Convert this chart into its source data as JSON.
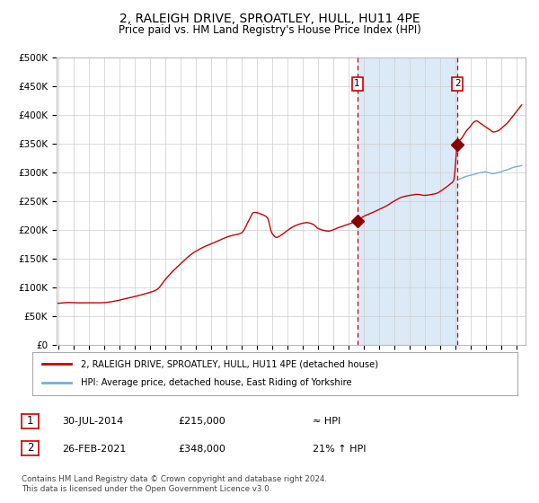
{
  "title": "2, RALEIGH DRIVE, SPROATLEY, HULL, HU11 4PE",
  "subtitle": "Price paid vs. HM Land Registry's House Price Index (HPI)",
  "title_fontsize": 10,
  "subtitle_fontsize": 8.5,
  "ylim": [
    0,
    500000
  ],
  "yticks": [
    0,
    50000,
    100000,
    150000,
    200000,
    250000,
    300000,
    350000,
    400000,
    450000,
    500000
  ],
  "ytick_labels": [
    "£0",
    "£50K",
    "£100K",
    "£150K",
    "£200K",
    "£250K",
    "£300K",
    "£350K",
    "£400K",
    "£450K",
    "£500K"
  ],
  "xlim_start": 1994.9,
  "xlim_end": 2025.6,
  "xticks": [
    1995,
    1996,
    1997,
    1998,
    1999,
    2000,
    2001,
    2002,
    2003,
    2004,
    2005,
    2006,
    2007,
    2008,
    2009,
    2010,
    2011,
    2012,
    2013,
    2014,
    2015,
    2016,
    2017,
    2018,
    2019,
    2020,
    2021,
    2022,
    2023,
    2024,
    2025
  ],
  "hpi_color": "#cc0000",
  "hpi_blue_color": "#7aaed6",
  "background_color": "#ffffff",
  "plot_bg_color": "#ffffff",
  "grid_color": "#cccccc",
  "shade_color": "#dceaf7",
  "sale1_x": 2014.58,
  "sale1_y": 215000,
  "sale2_x": 2021.15,
  "sale2_y": 348000,
  "marker_color": "#880000",
  "vline_color": "#cc0000",
  "legend_label_red": "2, RALEIGH DRIVE, SPROATLEY, HULL, HU11 4PE (detached house)",
  "legend_label_blue": "HPI: Average price, detached house, East Riding of Yorkshire",
  "note1_label": "1",
  "note1_date": "30-JUL-2014",
  "note1_price": "£215,000",
  "note1_rel": "≈ HPI",
  "note2_label": "2",
  "note2_date": "26-FEB-2021",
  "note2_price": "£348,000",
  "note2_rel": "21% ↑ HPI",
  "copyright_text": "Contains HM Land Registry data © Crown copyright and database right 2024.\nThis data is licensed under the Open Government Licence v3.0."
}
